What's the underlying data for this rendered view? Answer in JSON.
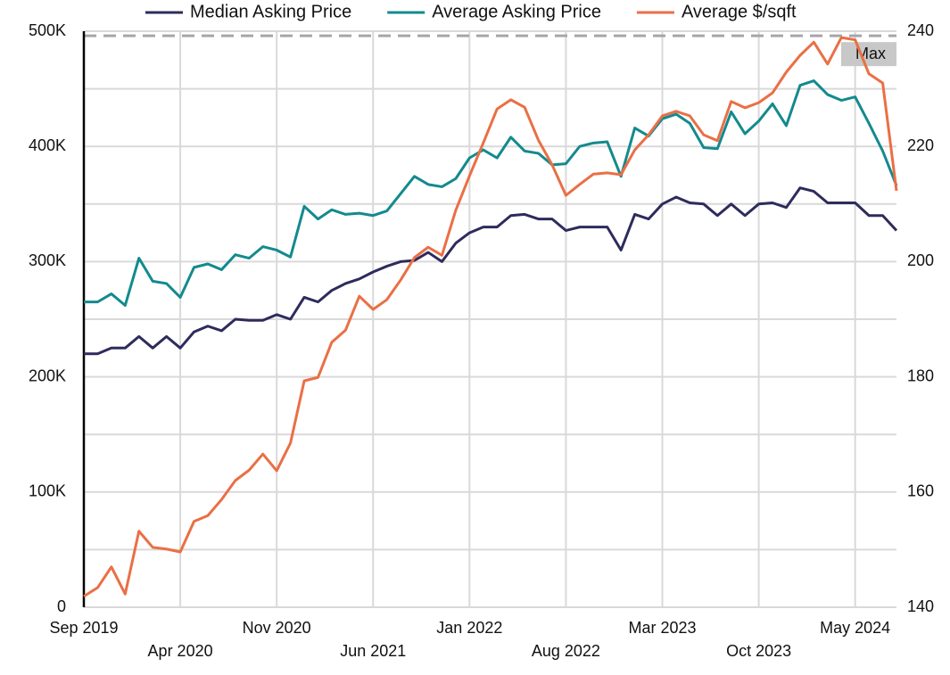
{
  "chart_data": {
    "type": "line",
    "categories": [
      "Sep 2019",
      null,
      null,
      null,
      null,
      null,
      null,
      "Apr 2020",
      null,
      null,
      null,
      null,
      null,
      null,
      "Nov 2020",
      null,
      null,
      null,
      null,
      null,
      null,
      "Jun 2021",
      null,
      null,
      null,
      null,
      null,
      null,
      "Jan 2022",
      null,
      null,
      null,
      null,
      null,
      null,
      "Aug 2022",
      null,
      null,
      null,
      null,
      null,
      null,
      "Mar 2023",
      null,
      null,
      null,
      null,
      null,
      null,
      "Oct 2023",
      null,
      null,
      null,
      null,
      null,
      null,
      "May 2024",
      null,
      null,
      null
    ],
    "series": [
      {
        "name": "Median Asking Price",
        "color": "#2e2b5c",
        "axis": "y",
        "values": [
          220000,
          220000,
          225000,
          225000,
          235000,
          225000,
          235000,
          225000,
          239000,
          244000,
          240000,
          250000,
          249000,
          249000,
          254000,
          250000,
          269000,
          265000,
          275000,
          281000,
          285000,
          291000,
          296000,
          300000,
          301000,
          308000,
          300000,
          316000,
          325000,
          330000,
          330000,
          340000,
          341000,
          337000,
          337000,
          327000,
          330000,
          330000,
          330000,
          310000,
          341000,
          337000,
          350000,
          356000,
          351000,
          350000,
          340000,
          350000,
          340000,
          350000,
          351000,
          347000,
          364000,
          361000,
          351000,
          351000,
          351000,
          340000,
          340000,
          327000
        ]
      },
      {
        "name": "Average Asking Price",
        "color": "#138a8e",
        "axis": "y",
        "values": [
          265000,
          265000,
          272000,
          262000,
          303000,
          283000,
          281000,
          269000,
          295000,
          298000,
          293000,
          306000,
          303000,
          313000,
          310000,
          304000,
          348000,
          337000,
          345000,
          341000,
          342000,
          340000,
          344000,
          359000,
          374000,
          367000,
          365000,
          372000,
          390000,
          397000,
          390000,
          408000,
          396000,
          394000,
          384000,
          385000,
          400000,
          403000,
          404000,
          374000,
          416000,
          409000,
          424000,
          428000,
          420000,
          399000,
          398000,
          430000,
          411000,
          422000,
          437000,
          418000,
          453000,
          457000,
          445000,
          440000,
          443000,
          420000,
          396000,
          366000
        ]
      },
      {
        "name": "Average $/sqft",
        "color": "#ea6f45",
        "axis": "y2",
        "values": [
          141.9,
          143.4,
          147.0,
          142.3,
          153.2,
          150.4,
          150.1,
          149.6,
          154.9,
          155.9,
          158.7,
          162.0,
          163.8,
          166.6,
          163.7,
          168.5,
          179.3,
          179.9,
          186.0,
          188.1,
          194.0,
          191.7,
          193.4,
          196.8,
          200.7,
          202.5,
          201.1,
          208.9,
          214.9,
          220.6,
          226.5,
          228.1,
          226.8,
          221.1,
          216.8,
          211.5,
          213.4,
          215.2,
          215.4,
          215.1,
          219.4,
          222.0,
          225.3,
          226.1,
          225.3,
          222.0,
          221.0,
          227.8,
          226.7,
          227.6,
          229.3,
          232.9,
          235.8,
          238.1,
          234.3,
          238.9,
          238.5,
          232.6,
          231.0,
          212.3
        ]
      }
    ],
    "ylim": [
      0,
      500000
    ],
    "yticks": [
      0,
      {
        "value": 100000,
        "label": "100K"
      },
      {
        "value": 200000,
        "label": "200K"
      },
      {
        "value": 300000,
        "label": "300K"
      },
      {
        "value": 400000,
        "label": "400K"
      },
      {
        "value": 500000,
        "label": "500K"
      }
    ],
    "minor_yticks": [
      50000,
      150000,
      250000,
      350000,
      450000
    ],
    "y2lim": [
      140,
      240
    ],
    "y2ticks": [
      140,
      160,
      180,
      200,
      220,
      240
    ],
    "annotations": [
      {
        "label": "Max",
        "value": 239.2,
        "axis": "y2"
      }
    ],
    "grid": true,
    "legend": "top"
  }
}
